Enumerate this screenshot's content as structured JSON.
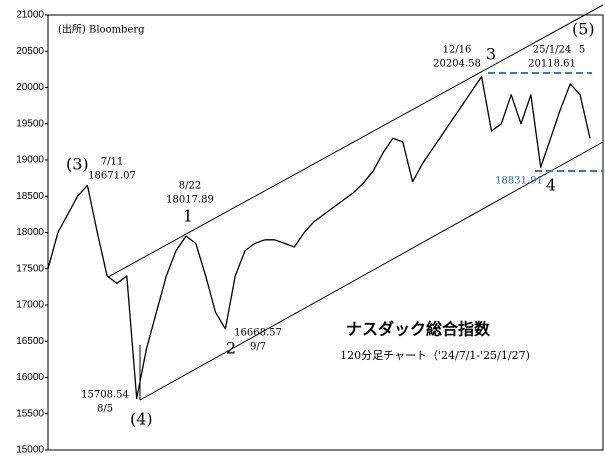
{
  "chart_data": {
    "type": "line",
    "values": [
      17500,
      18000,
      18250,
      18500,
      18650,
      18000,
      17400,
      17300,
      17400,
      15710,
      16400,
      16900,
      17400,
      17750,
      17950,
      17850,
      17400,
      16900,
      16670,
      17400,
      17750,
      17850,
      17900,
      17900,
      17850,
      17800,
      18000,
      18150,
      18250,
      18350,
      18450,
      18550,
      18680,
      18850,
      19100,
      19300,
      19250,
      18700,
      18950,
      19150,
      19350,
      19550,
      19750,
      19950,
      20150,
      19400,
      19500,
      19900,
      19500,
      19900,
      18900,
      19300,
      19700,
      20050,
      19900,
      19300
    ],
    "color": "#000000",
    "ylim": [
      15000,
      21000
    ],
    "yticks": [
      15000,
      15500,
      16000,
      16500,
      17000,
      17500,
      18000,
      18500,
      19000,
      19500,
      20000,
      20500,
      21000
    ],
    "grid": false,
    "annotations": [
      "(出所) Bloomberg",
      "(3)",
      "7/11",
      "18671.07",
      "8/22",
      "18017.89",
      "1",
      "16668.57",
      "9/7",
      "2",
      "15708.54",
      "8/5",
      "(4)",
      "12/16",
      "20204.58",
      "3",
      "25/1/24",
      "20118.61",
      "5",
      "(5)",
      "18831.91",
      "4",
      "ナスダック総合指数",
      "120分足チャート（'24/7/1-'25/1/27)"
    ]
  }
}
